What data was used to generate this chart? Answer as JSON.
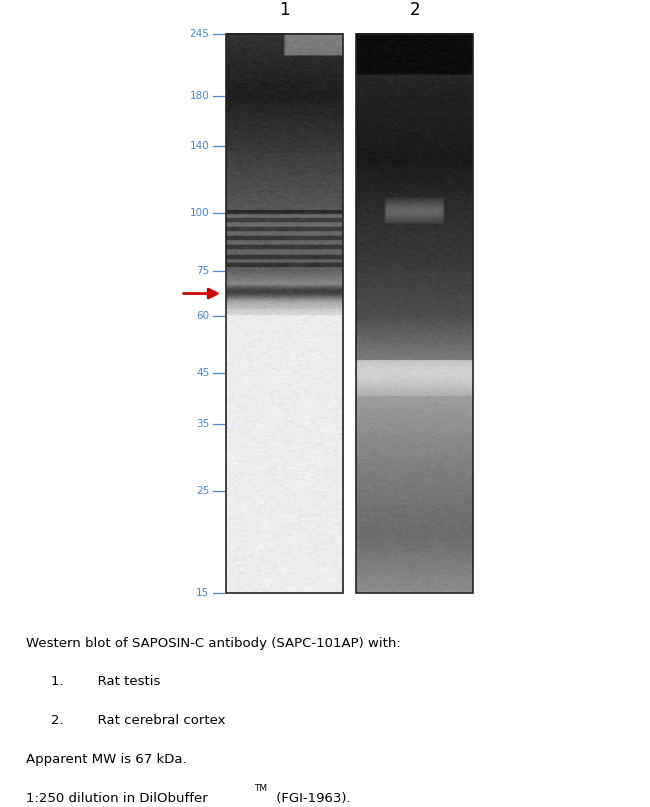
{
  "mw_markers": [
    245,
    180,
    140,
    100,
    75,
    60,
    45,
    35,
    25,
    15
  ],
  "marker_color": "#4488cc",
  "arrow_color": "#cc0000",
  "arrow_mw": 67,
  "bg_color": "#ffffff",
  "fig_width": 6.5,
  "fig_height": 8.07,
  "lane1_label": "1",
  "lane2_label": "2",
  "caption_line1": "Western blot of SAPOSIN-C antibody (SAPC-101AP) with:",
  "caption_line2": "1.        Rat testis",
  "caption_line3": "2.        Rat cerebral cortex",
  "caption_line4": "Apparent MW is 67 kDa.",
  "caption_line5a": "1:250 dilution in DilObuffer",
  "caption_line5b": "TM",
  "caption_line5c": " (FGI-1963).",
  "mw_log_min": 1.176,
  "mw_log_max": 2.389
}
